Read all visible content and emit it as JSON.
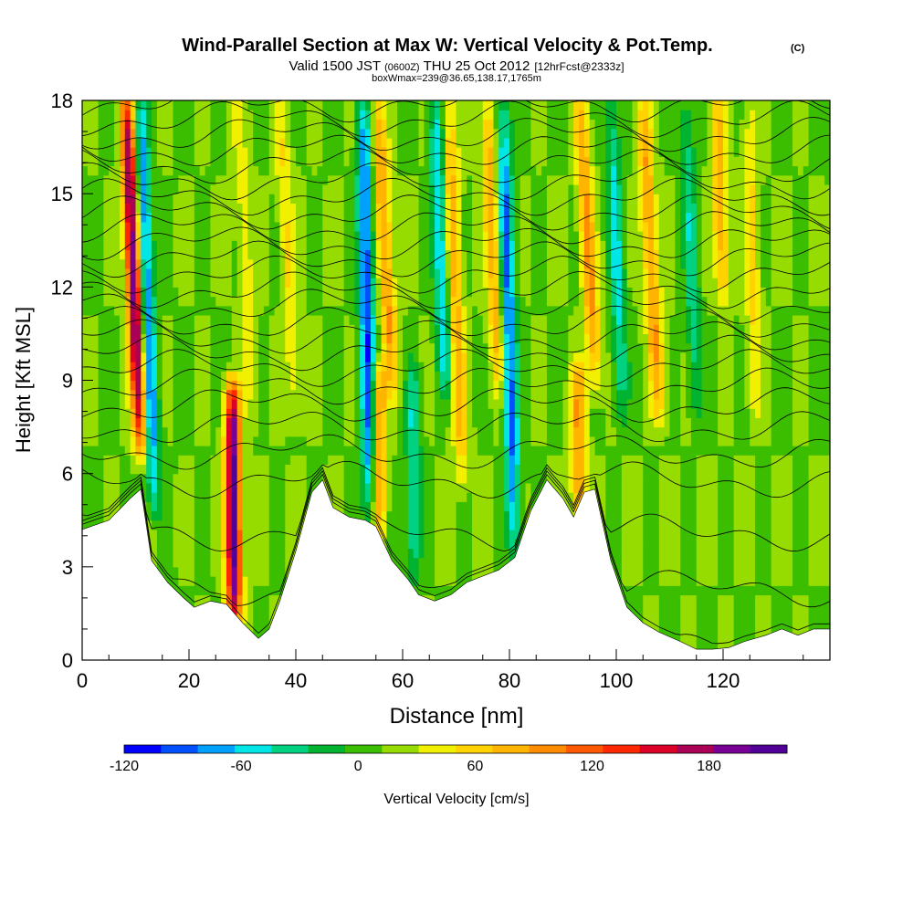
{
  "title": "Wind-Parallel Section at Max W: Vertical Velocity & Pot.Temp.",
  "title_mark": "(C)",
  "subtitle_parts": {
    "valid": "Valid 1500 JST",
    "utc": "(0600Z)",
    "date": "THU 25 Oct 2012",
    "fcst": "[12hrFcst@2333z]"
  },
  "boxline": "boxWmax=239@36.65,138.17,1765m",
  "chart_data": {
    "type": "heatmap",
    "xlabel": "Distance [nm]",
    "ylabel": "Height [Kft MSL]",
    "xlim": [
      0,
      140
    ],
    "ylim": [
      0,
      18
    ],
    "x_ticks": [
      0,
      20,
      40,
      60,
      80,
      100,
      120
    ],
    "y_ticks": [
      0,
      3,
      6,
      9,
      12,
      15,
      18
    ],
    "x_tick_labels": [
      "0",
      "20",
      "40",
      "60",
      "80",
      "100",
      "120"
    ],
    "y_tick_labels": [
      "0",
      "3",
      "6",
      "9",
      "12",
      "15",
      "18"
    ],
    "grid": false,
    "colorbar": {
      "label": "Vertical Velocity [cm/s]",
      "tick_labels": [
        "-120",
        "-60",
        "0",
        "60",
        "120",
        "180"
      ],
      "tick_values": [
        -120,
        -60,
        0,
        60,
        120,
        180
      ],
      "range": [
        -120,
        220
      ],
      "colors": [
        "#0000ff",
        "#0050ff",
        "#00a0ff",
        "#00e6e6",
        "#00d282",
        "#00b432",
        "#3cbe00",
        "#96dc00",
        "#f0f000",
        "#ffd200",
        "#ffb400",
        "#ff8c00",
        "#ff5a00",
        "#ff2800",
        "#dc0028",
        "#aa0055",
        "#780096",
        "#500096"
      ]
    },
    "terrain": [
      [
        0,
        4.2
      ],
      [
        5,
        4.5
      ],
      [
        9,
        5.2
      ],
      [
        11,
        5.5
      ],
      [
        13,
        3.2
      ],
      [
        16,
        2.5
      ],
      [
        19,
        2.0
      ],
      [
        21,
        1.7
      ],
      [
        24,
        1.9
      ],
      [
        27,
        1.8
      ],
      [
        30,
        1.2
      ],
      [
        33,
        0.7
      ],
      [
        35,
        1.0
      ],
      [
        37,
        1.9
      ],
      [
        40,
        3.5
      ],
      [
        43,
        5.4
      ],
      [
        45,
        5.8
      ],
      [
        47,
        4.9
      ],
      [
        50,
        4.6
      ],
      [
        53,
        4.5
      ],
      [
        55,
        4.3
      ],
      [
        58,
        3.2
      ],
      [
        61,
        2.6
      ],
      [
        63,
        2.1
      ],
      [
        66,
        1.9
      ],
      [
        69,
        2.1
      ],
      [
        72,
        2.5
      ],
      [
        75,
        2.7
      ],
      [
        78,
        2.9
      ],
      [
        81,
        3.3
      ],
      [
        84,
        4.8
      ],
      [
        87,
        5.8
      ],
      [
        90,
        5.2
      ],
      [
        92,
        4.6
      ],
      [
        94,
        5.4
      ],
      [
        96,
        5.5
      ],
      [
        99,
        3.2
      ],
      [
        102,
        1.7
      ],
      [
        105,
        1.2
      ],
      [
        108,
        0.9
      ],
      [
        112,
        0.6
      ],
      [
        115,
        0.35
      ],
      [
        118,
        0.35
      ],
      [
        121,
        0.4
      ],
      [
        124,
        0.6
      ],
      [
        128,
        0.8
      ],
      [
        131,
        1.0
      ],
      [
        134,
        0.8
      ],
      [
        137,
        1.0
      ],
      [
        140,
        1.0
      ]
    ],
    "vertical_velocity_features": [
      {
        "x": 11,
        "z0": 7,
        "z1": 18,
        "w": 190,
        "tilt": 0.25
      },
      {
        "x": 28.5,
        "z0": 1.5,
        "z1": 8.5,
        "w": 200,
        "tilt": 0.05
      },
      {
        "x": 13.5,
        "z0": 5,
        "z1": 18,
        "w": -100,
        "tilt": 0.2
      },
      {
        "x": 54,
        "z0": 4.5,
        "z1": 18,
        "w": -110,
        "tilt": 0.1
      },
      {
        "x": 55.5,
        "z0": 4.5,
        "z1": 9,
        "w": 90,
        "tilt": 0.0
      },
      {
        "x": 58,
        "z0": 9,
        "z1": 18,
        "w": 80,
        "tilt": 0.3
      },
      {
        "x": 62,
        "z0": 3,
        "z1": 9,
        "w": -60,
        "tilt": 0.0
      },
      {
        "x": 68,
        "z0": 9,
        "z1": 18,
        "w": -80,
        "tilt": 0.2
      },
      {
        "x": 71,
        "z0": 6,
        "z1": 18,
        "w": 70,
        "tilt": 0.2
      },
      {
        "x": 81,
        "z0": 3.5,
        "z1": 18,
        "w": -100,
        "tilt": 0.15
      },
      {
        "x": 78,
        "z0": 9,
        "z1": 18,
        "w": 70,
        "tilt": 0.25
      },
      {
        "x": 93,
        "z0": 5,
        "z1": 9,
        "w": 80,
        "tilt": 0.0
      },
      {
        "x": 96,
        "z0": 9,
        "z1": 18,
        "w": 80,
        "tilt": 0.3
      },
      {
        "x": 101,
        "z0": 8,
        "z1": 18,
        "w": -60,
        "tilt": 0.2
      },
      {
        "x": 108,
        "z0": 8,
        "z1": 18,
        "w": 80,
        "tilt": 0.3
      },
      {
        "x": 115,
        "z0": 8,
        "z1": 18,
        "w": -50,
        "tilt": 0.2
      },
      {
        "x": 120,
        "z0": 12,
        "z1": 18,
        "w": 70,
        "tilt": 0.2
      },
      {
        "x": 126,
        "z0": 8,
        "z1": 18,
        "w": 40,
        "tilt": 0.1
      },
      {
        "x": 40,
        "z0": 8,
        "z1": 18,
        "w": 40,
        "tilt": 0.3
      },
      {
        "x": 32,
        "z0": 8,
        "z1": 18,
        "w": 30,
        "tilt": 0.3
      }
    ],
    "isentropes_kft": [
      0.3,
      2.3,
      4.1,
      5.8,
      6.7,
      7.5,
      8.2,
      8.8,
      9.4,
      9.9,
      10.4,
      10.9,
      11.4,
      11.9,
      12.4,
      12.9,
      13.4,
      13.9,
      14.4,
      14.9,
      15.4,
      15.9,
      16.4,
      16.9,
      17.4,
      17.9
    ]
  }
}
